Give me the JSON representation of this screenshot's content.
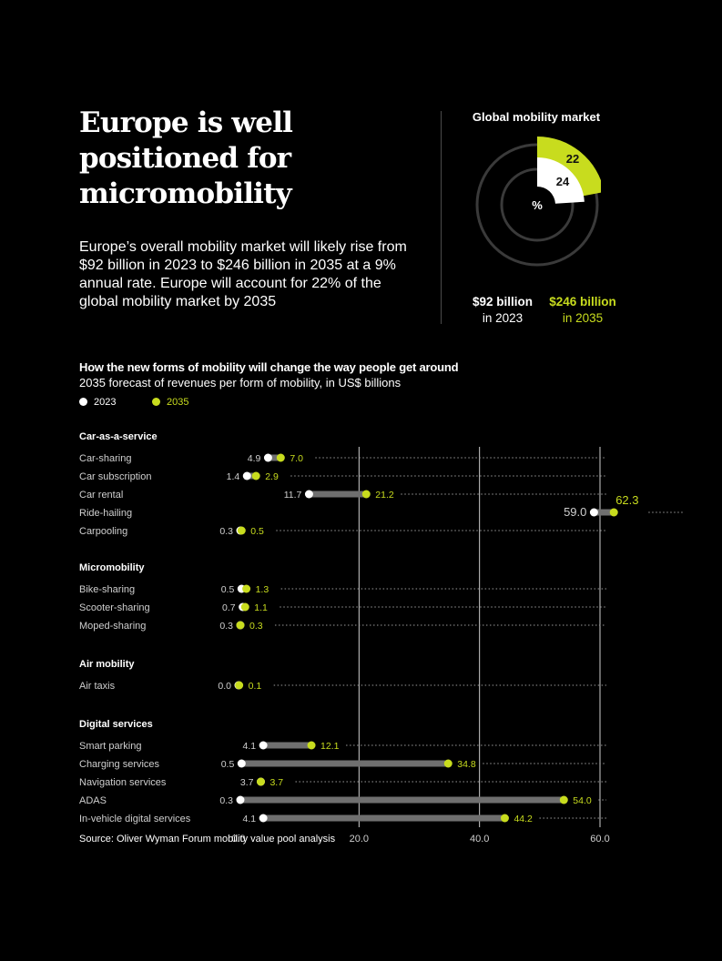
{
  "headline": "Europe is well positioned for micromobility",
  "intro": "Europe’s overall mobility market will likely rise from $92 billion in 2023 to $246 billion in 2035 at a 9% annual rate. Europe will account for 22% of the global mobility market by 2035",
  "global_market": {
    "title": "Global mobility market",
    "center_label": "%",
    "share_2023": "24",
    "share_2035": "22",
    "legend_2023_value": "$92 billion",
    "legend_2023_year": "in 2023",
    "legend_2035_value": "$246 billion",
    "legend_2035_year": "in 2035"
  },
  "colors": {
    "y2023": "#ffffff",
    "y2035": "#c8dc1e",
    "bar": "#6f6f6f",
    "ring": "#3a3a3a"
  },
  "chart_data": {
    "type": "dumbbell",
    "title": "How the new forms of mobility will change the way people get around",
    "subtitle": "2035 forecast of revenues per form of mobility, in US$ billions",
    "series": [
      {
        "name": "2023"
      },
      {
        "name": "2035"
      }
    ],
    "xlim": [
      0,
      60
    ],
    "ticks": [
      "0.0",
      "20.0",
      "40.0",
      "60.0"
    ],
    "groups": [
      {
        "name": "Car-as-a-service",
        "items": [
          {
            "label": "Car-sharing",
            "v2023": 4.9,
            "v2035": 7.0,
            "t2023": "4.9",
            "t2035": "7.0"
          },
          {
            "label": "Car subscription",
            "v2023": 1.4,
            "v2035": 2.9,
            "t2023": "1.4",
            "t2035": "2.9"
          },
          {
            "label": "Car rental",
            "v2023": 11.7,
            "v2035": 21.2,
            "t2023": "11.7",
            "t2035": "21.2"
          },
          {
            "label": "Ride-hailing",
            "v2023": 59.0,
            "v2035": 62.3,
            "t2023": "59.0",
            "t2035": "62.3"
          },
          {
            "label": "Carpooling",
            "v2023": 0.3,
            "v2035": 0.5,
            "t2023": "0.3",
            "t2035": "0.5"
          }
        ]
      },
      {
        "name": "Micromobility",
        "items": [
          {
            "label": "Bike-sharing",
            "v2023": 0.5,
            "v2035": 1.3,
            "t2023": "0.5",
            "t2035": "1.3"
          },
          {
            "label": "Scooter-sharing",
            "v2023": 0.7,
            "v2035": 1.1,
            "t2023": "0.7",
            "t2035": "1.1"
          },
          {
            "label": "Moped-sharing",
            "v2023": 0.3,
            "v2035": 0.3,
            "t2023": "0.3",
            "t2035": "0.3"
          }
        ]
      },
      {
        "name": "Air mobility",
        "items": [
          {
            "label": "Air taxis",
            "v2023": 0.0,
            "v2035": 0.1,
            "t2023": "0.0",
            "t2035": "0.1"
          }
        ]
      },
      {
        "name": "Digital services",
        "items": [
          {
            "label": "Smart parking",
            "v2023": 4.1,
            "v2035": 12.1,
            "t2023": "4.1",
            "t2035": "12.1"
          },
          {
            "label": "Charging services",
            "v2023": 0.5,
            "v2035": 34.8,
            "t2023": "0.5",
            "t2035": "34.8"
          },
          {
            "label": "Navigation services",
            "v2023": 3.7,
            "v2035": 3.7,
            "t2023": "3.7",
            "t2035": "3.7"
          },
          {
            "label": "ADAS",
            "v2023": 0.3,
            "v2035": 54.0,
            "t2023": "0.3",
            "t2035": "54.0"
          },
          {
            "label": "In-vehicle digital services",
            "v2023": 4.1,
            "v2035": 44.2,
            "t2023": "4.1",
            "t2035": "44.2"
          }
        ]
      }
    ]
  },
  "source": "Source: Oliver Wyman Forum mobility value pool analysis"
}
